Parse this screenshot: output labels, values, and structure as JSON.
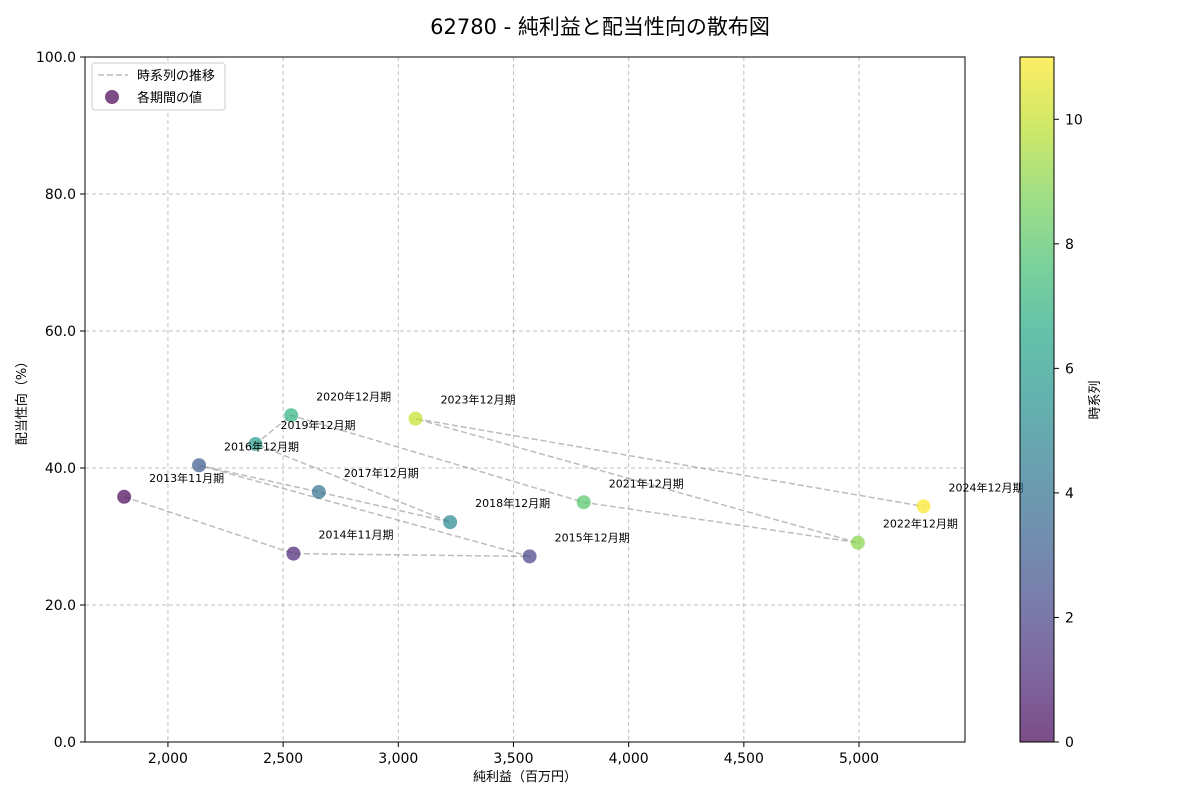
{
  "chart_data": {
    "type": "scatter",
    "title": "62780 - 純利益と配当性向の散布図",
    "xlabel": "純利益（百万円）",
    "ylabel": "配当性向（%）",
    "xlim": [
      1640,
      5460
    ],
    "ylim": [
      0,
      100
    ],
    "xticks": [
      2000,
      2500,
      3000,
      3500,
      4000,
      4500,
      5000
    ],
    "xtick_labels": [
      "2,000",
      "2,500",
      "3,000",
      "3,500",
      "4,000",
      "4,500",
      "5,000"
    ],
    "yticks": [
      0,
      20,
      40,
      60,
      80,
      100
    ],
    "ytick_labels": [
      "0.0",
      "20.0",
      "40.0",
      "60.0",
      "80.0",
      "100.0"
    ],
    "grid": true,
    "legend": {
      "position": "top-left",
      "line_label": "時系列の推移",
      "marker_label": "各期間の値"
    },
    "colorbar": {
      "label": "時系列",
      "range": [
        0,
        11
      ],
      "ticks": [
        0,
        2,
        4,
        6,
        8,
        10
      ],
      "tick_labels": [
        "0",
        "2",
        "4",
        "6",
        "8",
        "10"
      ]
    },
    "points": [
      {
        "label": "2013年11月期",
        "x": 1810,
        "y": 35.8,
        "t": 0
      },
      {
        "label": "2014年11月期",
        "x": 2545,
        "y": 27.5,
        "t": 1
      },
      {
        "label": "2015年12月期",
        "x": 3570,
        "y": 27.1,
        "t": 2
      },
      {
        "label": "2016年12月期",
        "x": 2135,
        "y": 40.4,
        "t": 3
      },
      {
        "label": "2017年12月期",
        "x": 2655,
        "y": 36.5,
        "t": 4
      },
      {
        "label": "2018年12月期",
        "x": 3225,
        "y": 32.1,
        "t": 5
      },
      {
        "label": "2019年12月期",
        "x": 2380,
        "y": 43.5,
        "t": 6
      },
      {
        "label": "2020年12月期",
        "x": 2535,
        "y": 47.7,
        "t": 7
      },
      {
        "label": "2021年12月期",
        "x": 3805,
        "y": 35.0,
        "t": 8
      },
      {
        "label": "2022年12月期",
        "x": 4995,
        "y": 29.1,
        "t": 9
      },
      {
        "label": "2023年12月期",
        "x": 3075,
        "y": 47.2,
        "t": 10
      },
      {
        "label": "2024年12月期",
        "x": 5280,
        "y": 34.4,
        "t": 11
      }
    ]
  }
}
